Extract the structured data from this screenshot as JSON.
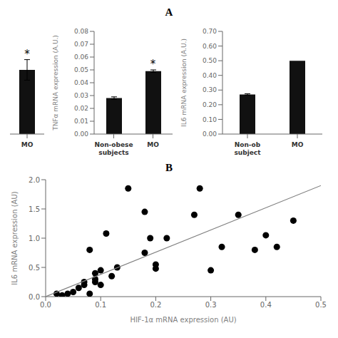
{
  "chart_data": [
    {
      "type": "bar",
      "title": "A",
      "categories": [
        "MO"
      ],
      "values": [
        0.05
      ],
      "errors": [
        0.008
      ],
      "color": "#111111",
      "ylim": [
        0,
        0.08
      ],
      "tick_labels": "x",
      "annotations": [
        {
          "text": "*",
          "category": "MO"
        }
      ]
    },
    {
      "type": "bar",
      "categories": [
        "Non-obese\nsubjects",
        "MO"
      ],
      "values": [
        0.028,
        0.049
      ],
      "errors": [
        0.001,
        0.001
      ],
      "color": "#111111",
      "ylabel": "TNFα mRNA expression (A.U.)",
      "ylim": [
        0.0,
        0.08
      ],
      "yticks": [
        {
          "value": 0.0,
          "label": "0.00"
        },
        0.01,
        0.02,
        0.03,
        0.04,
        0.05,
        0.06,
        0.07,
        0.08
      ],
      "annotations": [
        {
          "text": "*",
          "category": "MO"
        }
      ]
    },
    {
      "type": "bar",
      "categories": [
        "Non-ob\nsubject",
        "MO"
      ],
      "values": [
        0.27,
        0.5
      ],
      "errors": [
        0.005,
        null
      ],
      "color": "#111111",
      "ylabel": "IL6 mRNA expression (A.U.)",
      "ylim": [
        0.0,
        0.7
      ],
      "yticks": [
        {
          "value": 0.0,
          "label": "0.00"
        },
        {
          "value": 0.1,
          "label": "0.10"
        },
        {
          "value": 0.2,
          "label": "0.20"
        },
        {
          "value": 0.3,
          "label": "0.30"
        },
        {
          "value": 0.4,
          "label": "0.40"
        },
        {
          "value": 0.5,
          "label": "0.50"
        },
        {
          "value": 0.6,
          "label": "0.60"
        },
        {
          "value": 0.7,
          "label": "0.70"
        }
      ]
    },
    {
      "type": "scatter",
      "title": "B",
      "xlabel": "HIF-1α mRNA expression (AU)",
      "ylabel": "IL6 mRNA expression (AU)",
      "xlim": [
        0.0,
        0.5
      ],
      "ylim": [
        0.0,
        2.0
      ],
      "xticks": [
        {
          "value": 0.0,
          "label": "0.0"
        },
        0.1,
        0.2,
        0.3,
        0.4,
        0.5
      ],
      "yticks": [
        {
          "value": 0.0,
          "label": "0.0"
        },
        0.5,
        {
          "value": 1.0,
          "label": "1.0"
        },
        1.5,
        {
          "value": 2.0,
          "label": "2.0"
        }
      ],
      "series": [
        {
          "type": "scatter",
          "color": "black",
          "x": [
            0.02,
            0.03,
            0.04,
            0.05,
            0.06,
            0.07,
            0.07,
            0.08,
            0.08,
            0.09,
            0.09,
            0.09,
            0.1,
            0.1,
            0.11,
            0.12,
            0.13,
            0.15,
            0.18,
            0.18,
            0.19,
            0.2,
            0.2,
            0.22,
            0.27,
            0.28,
            0.3,
            0.32,
            0.35,
            0.38,
            0.4,
            0.42,
            0.45
          ],
          "values": [
            0.05,
            0.02,
            0.05,
            0.08,
            0.15,
            0.2,
            0.25,
            0.05,
            0.8,
            0.25,
            0.3,
            0.4,
            0.45,
            0.2,
            1.08,
            0.35,
            0.5,
            1.85,
            0.75,
            1.45,
            1.0,
            0.55,
            0.48,
            1.0,
            1.4,
            1.85,
            0.45,
            0.85,
            1.4,
            0.8,
            1.05,
            0.85,
            1.3
          ]
        },
        {
          "type": "line",
          "color": "gray",
          "x": [
            0.0,
            0.5
          ],
          "values": [
            0.0,
            1.9
          ]
        }
      ]
    }
  ]
}
